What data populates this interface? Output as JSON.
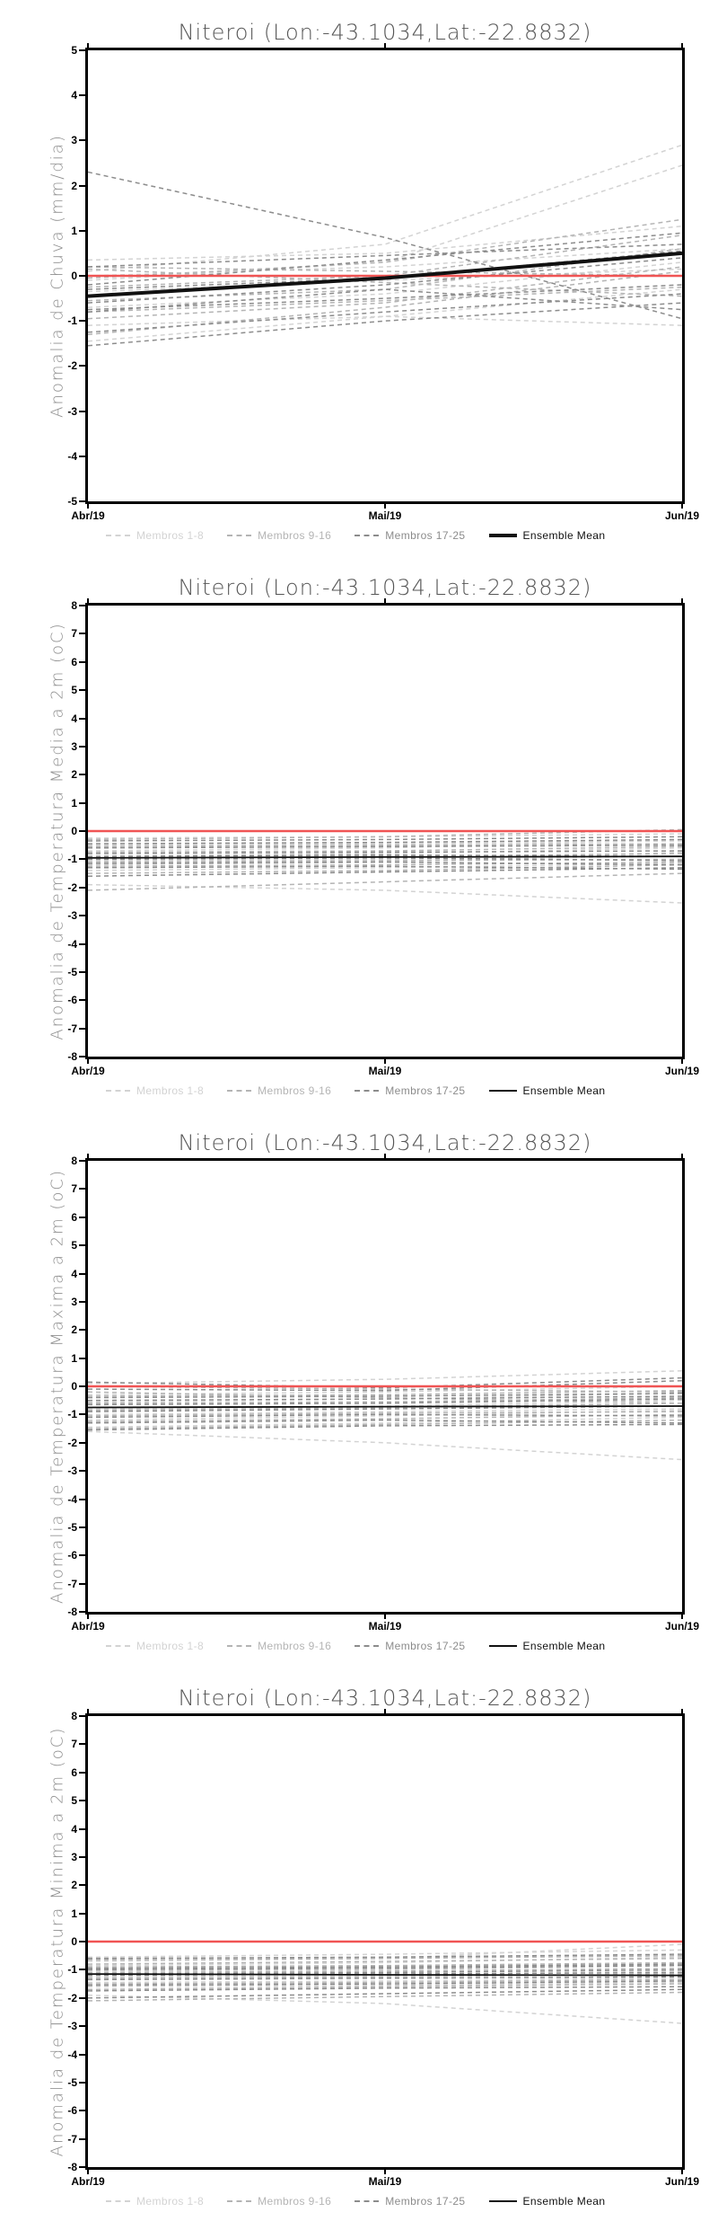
{
  "page": {
    "background": "#ffffff"
  },
  "colors": {
    "zero_line": "#f05454",
    "mean_line": "#111111",
    "axis": "#000000",
    "title_text": "#565656",
    "ylabel_text": "#8f8f8f",
    "member_group_1": "#d3d3d3",
    "member_group_2": "#b4b4b4",
    "member_group_3": "#8c8c8c"
  },
  "legend": {
    "items": [
      {
        "label": "Membros 1-8",
        "color": "#d3d3d3",
        "style": "dashed"
      },
      {
        "label": "Membros 9-16",
        "color": "#b4b4b4",
        "style": "dashed"
      },
      {
        "label": "Membros 17-25",
        "color": "#8c8c8c",
        "style": "dashed"
      },
      {
        "label": "Ensemble Mean",
        "color": "#111111",
        "style": "solid"
      }
    ]
  },
  "chart_data": [
    {
      "type": "line",
      "title": "Niteroi (Lon:-43.1034,Lat:-22.8832)",
      "ylabel": "Anomalia de Chuva (mm/dia)",
      "x_categories": [
        "Abr/19",
        "Mai/19",
        "Jun/19"
      ],
      "ylim": [
        -5,
        5
      ],
      "yticks": [
        "5",
        "4",
        "3",
        "2",
        "1",
        "0",
        "-1",
        "-2",
        "-3",
        "-4",
        "-5"
      ],
      "zero_line": 0,
      "mean_style": "thick",
      "mean": {
        "name": "Ensemble Mean",
        "values": [
          -0.45,
          -0.05,
          0.5
        ]
      },
      "members": [
        {
          "group": 0,
          "values": [
            0.35,
            0.5,
            1.1
          ]
        },
        {
          "group": 0,
          "values": [
            0.1,
            0.7,
            2.9
          ]
        },
        {
          "group": 0,
          "values": [
            -0.1,
            0.3,
            2.45
          ]
        },
        {
          "group": 0,
          "values": [
            -0.7,
            -0.4,
            0.3
          ]
        },
        {
          "group": 0,
          "values": [
            -1.1,
            -0.9,
            -1.1
          ]
        },
        {
          "group": 0,
          "values": [
            -1.45,
            -0.9,
            -0.3
          ]
        },
        {
          "group": 0,
          "values": [
            0.0,
            0.2,
            0.6
          ]
        },
        {
          "group": 0,
          "values": [
            -0.35,
            -0.1,
            0.15
          ]
        },
        {
          "group": 1,
          "values": [
            0.2,
            0.1,
            0.0
          ]
        },
        {
          "group": 1,
          "values": [
            -0.25,
            0.0,
            0.9
          ]
        },
        {
          "group": 1,
          "values": [
            -0.55,
            -0.3,
            0.6
          ]
        },
        {
          "group": 1,
          "values": [
            -0.8,
            -0.55,
            -0.25
          ]
        },
        {
          "group": 1,
          "values": [
            -1.3,
            -0.7,
            0.1
          ]
        },
        {
          "group": 1,
          "values": [
            0.15,
            -0.15,
            -0.45
          ]
        },
        {
          "group": 1,
          "values": [
            -0.05,
            0.3,
            1.25
          ]
        },
        {
          "group": 1,
          "values": [
            -0.95,
            -0.6,
            0.2
          ]
        },
        {
          "group": 2,
          "values": [
            2.3,
            0.85,
            -0.95
          ]
        },
        {
          "group": 2,
          "values": [
            0.2,
            0.45,
            0.7
          ]
        },
        {
          "group": 2,
          "values": [
            -0.2,
            0.35,
            0.95
          ]
        },
        {
          "group": 2,
          "values": [
            -0.3,
            -0.05,
            0.55
          ]
        },
        {
          "group": 2,
          "values": [
            -0.6,
            -0.2,
            0.4
          ]
        },
        {
          "group": 2,
          "values": [
            -0.75,
            -0.5,
            -0.2
          ]
        },
        {
          "group": 2,
          "values": [
            -0.8,
            -0.3,
            -0.75
          ]
        },
        {
          "group": 2,
          "values": [
            -1.25,
            -0.8,
            -0.4
          ]
        },
        {
          "group": 2,
          "values": [
            -1.55,
            -1.0,
            -0.6
          ]
        }
      ]
    },
    {
      "type": "line",
      "title": "Niteroi (Lon:-43.1034,Lat:-22.8832)",
      "ylabel": "Anomalia de Temperatura Media a 2m (oC)",
      "x_categories": [
        "Abr/19",
        "Mai/19",
        "Jun/19"
      ],
      "ylim": [
        -8,
        8
      ],
      "yticks": [
        "8",
        "7",
        "6",
        "5",
        "4",
        "3",
        "2",
        "1",
        "0",
        "-1",
        "-2",
        "-3",
        "-4",
        "-5",
        "-6",
        "-7",
        "-8"
      ],
      "zero_line": 0,
      "mean_style": "thin",
      "mean": {
        "name": "Ensemble Mean",
        "values": [
          -0.95,
          -0.92,
          -0.9
        ]
      },
      "members": [
        {
          "group": 0,
          "values": [
            -0.25,
            -0.2,
            -0.1
          ]
        },
        {
          "group": 0,
          "values": [
            -0.5,
            -0.45,
            -0.35
          ]
        },
        {
          "group": 0,
          "values": [
            -0.7,
            -0.6,
            -0.3
          ]
        },
        {
          "group": 0,
          "values": [
            -0.9,
            -0.8,
            -0.6
          ]
        },
        {
          "group": 0,
          "values": [
            -1.05,
            -1.0,
            -0.9
          ]
        },
        {
          "group": 0,
          "values": [
            -1.2,
            -1.1,
            -0.75
          ]
        },
        {
          "group": 0,
          "values": [
            -1.4,
            -1.3,
            -1.15
          ]
        },
        {
          "group": 0,
          "values": [
            -1.9,
            -2.1,
            -2.55
          ]
        },
        {
          "group": 1,
          "values": [
            -0.3,
            -0.2,
            0.05
          ]
        },
        {
          "group": 1,
          "values": [
            -0.55,
            -0.5,
            -0.45
          ]
        },
        {
          "group": 1,
          "values": [
            -0.75,
            -0.7,
            -0.55
          ]
        },
        {
          "group": 1,
          "values": [
            -0.95,
            -0.9,
            -0.8
          ]
        },
        {
          "group": 1,
          "values": [
            -1.1,
            -1.05,
            -1.0
          ]
        },
        {
          "group": 1,
          "values": [
            -1.25,
            -1.2,
            -1.1
          ]
        },
        {
          "group": 1,
          "values": [
            -1.5,
            -1.4,
            -1.2
          ]
        },
        {
          "group": 1,
          "values": [
            -2.1,
            -1.8,
            -1.5
          ]
        },
        {
          "group": 2,
          "values": [
            -0.35,
            -0.3,
            -0.2
          ]
        },
        {
          "group": 2,
          "values": [
            -0.6,
            -0.55,
            -0.5
          ]
        },
        {
          "group": 2,
          "values": [
            -0.8,
            -0.75,
            -0.7
          ]
        },
        {
          "group": 2,
          "values": [
            -0.9,
            -0.85,
            -0.9
          ]
        },
        {
          "group": 2,
          "values": [
            -1.0,
            -0.95,
            -1.05
          ]
        },
        {
          "group": 2,
          "values": [
            -1.15,
            -1.1,
            -1.2
          ]
        },
        {
          "group": 2,
          "values": [
            -1.3,
            -1.25,
            -1.35
          ]
        },
        {
          "group": 2,
          "values": [
            -1.6,
            -1.45,
            -1.3
          ]
        },
        {
          "group": 2,
          "values": [
            -0.45,
            -0.4,
            -0.3
          ]
        }
      ]
    },
    {
      "type": "line",
      "title": "Niteroi (Lon:-43.1034,Lat:-22.8832)",
      "ylabel": "Anomalia de Temperatura Maxima a 2m (oC)",
      "x_categories": [
        "Abr/19",
        "Mai/19",
        "Jun/19"
      ],
      "ylim": [
        -8,
        8
      ],
      "yticks": [
        "8",
        "7",
        "6",
        "5",
        "4",
        "3",
        "2",
        "1",
        "0",
        "-1",
        "-2",
        "-3",
        "-4",
        "-5",
        "-6",
        "-7",
        "-8"
      ],
      "zero_line": 0,
      "mean_style": "thin",
      "mean": {
        "name": "Ensemble Mean",
        "values": [
          -0.75,
          -0.72,
          -0.7
        ]
      },
      "members": [
        {
          "group": 0,
          "values": [
            0.1,
            0.25,
            0.55
          ]
        },
        {
          "group": 0,
          "values": [
            -0.3,
            -0.2,
            0.0
          ]
        },
        {
          "group": 0,
          "values": [
            -0.55,
            -0.45,
            -0.25
          ]
        },
        {
          "group": 0,
          "values": [
            -0.8,
            -0.7,
            -0.5
          ]
        },
        {
          "group": 0,
          "values": [
            -1.0,
            -0.9,
            -0.8
          ]
        },
        {
          "group": 0,
          "values": [
            -1.2,
            -1.05,
            -0.85
          ]
        },
        {
          "group": 0,
          "values": [
            -1.45,
            -1.3,
            -1.1
          ]
        },
        {
          "group": 0,
          "values": [
            -1.6,
            -2.0,
            -2.6
          ]
        },
        {
          "group": 1,
          "values": [
            0.0,
            -0.1,
            -0.2
          ]
        },
        {
          "group": 1,
          "values": [
            -0.35,
            -0.3,
            -0.15
          ]
        },
        {
          "group": 1,
          "values": [
            -0.6,
            -0.55,
            -0.4
          ]
        },
        {
          "group": 1,
          "values": [
            -0.85,
            -0.75,
            -0.6
          ]
        },
        {
          "group": 1,
          "values": [
            -1.05,
            -0.95,
            -0.9
          ]
        },
        {
          "group": 1,
          "values": [
            -1.25,
            -1.15,
            -1.0
          ]
        },
        {
          "group": 1,
          "values": [
            -1.5,
            -1.35,
            -1.2
          ]
        },
        {
          "group": 1,
          "values": [
            -0.2,
            -0.4,
            -0.6
          ]
        },
        {
          "group": 2,
          "values": [
            0.15,
            -0.05,
            0.3
          ]
        },
        {
          "group": 2,
          "values": [
            -0.1,
            -0.15,
            0.2
          ]
        },
        {
          "group": 2,
          "values": [
            -0.4,
            -0.35,
            -0.25
          ]
        },
        {
          "group": 2,
          "values": [
            -0.65,
            -0.6,
            -0.45
          ]
        },
        {
          "group": 2,
          "values": [
            -0.9,
            -0.8,
            -0.7
          ]
        },
        {
          "group": 2,
          "values": [
            -1.1,
            -1.0,
            -1.05
          ]
        },
        {
          "group": 2,
          "values": [
            -1.3,
            -1.2,
            -1.3
          ]
        },
        {
          "group": 2,
          "values": [
            -1.55,
            -1.4,
            -1.35
          ]
        },
        {
          "group": 2,
          "values": [
            -0.5,
            -0.45,
            -0.35
          ]
        }
      ]
    },
    {
      "type": "line",
      "title": "Niteroi (Lon:-43.1034,Lat:-22.8832)",
      "ylabel": "Anomalia de Temperatura Minima a 2m (oC)",
      "x_categories": [
        "Abr/19",
        "Mai/19",
        "Jun/19"
      ],
      "ylim": [
        -8,
        8
      ],
      "yticks": [
        "8",
        "7",
        "6",
        "5",
        "4",
        "3",
        "2",
        "1",
        "0",
        "-1",
        "-2",
        "-3",
        "-4",
        "-5",
        "-6",
        "-7",
        "-8"
      ],
      "zero_line": 0,
      "mean_style": "thin",
      "mean": {
        "name": "Ensemble Mean",
        "values": [
          -1.15,
          -1.18,
          -1.2
        ]
      },
      "members": [
        {
          "group": 0,
          "values": [
            -0.55,
            -0.45,
            -0.3
          ]
        },
        {
          "group": 0,
          "values": [
            -0.85,
            -0.75,
            -0.55
          ]
        },
        {
          "group": 0,
          "values": [
            -1.05,
            -1.0,
            -0.85
          ]
        },
        {
          "group": 0,
          "values": [
            -1.25,
            -1.2,
            -1.05
          ]
        },
        {
          "group": 0,
          "values": [
            -1.45,
            -1.4,
            -1.3
          ]
        },
        {
          "group": 0,
          "values": [
            -1.6,
            -1.55,
            -1.45
          ]
        },
        {
          "group": 0,
          "values": [
            -1.9,
            -2.2,
            -2.9
          ]
        },
        {
          "group": 0,
          "values": [
            -0.7,
            -0.6,
            -0.1
          ]
        },
        {
          "group": 1,
          "values": [
            -0.65,
            -0.6,
            -0.5
          ]
        },
        {
          "group": 1,
          "values": [
            -0.9,
            -0.85,
            -0.75
          ]
        },
        {
          "group": 1,
          "values": [
            -1.1,
            -1.05,
            -0.95
          ]
        },
        {
          "group": 1,
          "values": [
            -1.3,
            -1.25,
            -1.15
          ]
        },
        {
          "group": 1,
          "values": [
            -1.5,
            -1.45,
            -1.35
          ]
        },
        {
          "group": 1,
          "values": [
            -1.7,
            -1.6,
            -1.5
          ]
        },
        {
          "group": 1,
          "values": [
            -2.1,
            -1.95,
            -1.8
          ]
        },
        {
          "group": 1,
          "values": [
            -0.8,
            -0.7,
            -0.6
          ]
        },
        {
          "group": 2,
          "values": [
            -0.6,
            -0.55,
            -0.45
          ]
        },
        {
          "group": 2,
          "values": [
            -0.95,
            -0.9,
            -0.8
          ]
        },
        {
          "group": 2,
          "values": [
            -1.15,
            -1.1,
            -1.0
          ]
        },
        {
          "group": 2,
          "values": [
            -1.35,
            -1.3,
            -1.25
          ]
        },
        {
          "group": 2,
          "values": [
            -1.55,
            -1.5,
            -1.4
          ]
        },
        {
          "group": 2,
          "values": [
            -1.75,
            -1.65,
            -1.6
          ]
        },
        {
          "group": 2,
          "values": [
            -2.0,
            -1.85,
            -1.7
          ]
        },
        {
          "group": 2,
          "values": [
            -1.0,
            -0.95,
            -0.85
          ]
        },
        {
          "group": 2,
          "values": [
            -1.2,
            -1.15,
            -1.1
          ]
        }
      ]
    }
  ]
}
